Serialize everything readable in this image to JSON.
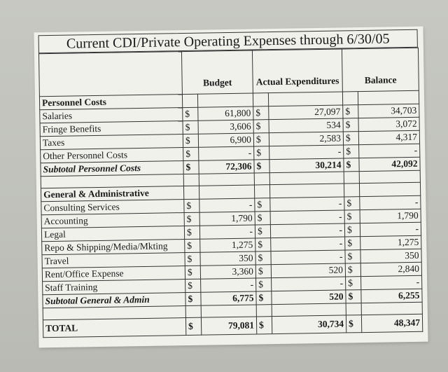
{
  "title": "Current CDI/Private Operating Expenses through 6/30/05",
  "headers": {
    "budget": "Budget",
    "actual": "Actual Expenditures",
    "balance": "Balance"
  },
  "currency": "$",
  "sections": [
    {
      "name": "Personnel Costs",
      "rows": [
        {
          "label": "Salaries",
          "budget": "61,800",
          "actual": "27,097",
          "balance": "34,703"
        },
        {
          "label": "Fringe Benefits",
          "budget": "3,606",
          "actual": "534",
          "balance": "3,072"
        },
        {
          "label": "Taxes",
          "budget": "6,900",
          "actual": "2,583",
          "balance": "4,317"
        },
        {
          "label": "Other Personnel Costs",
          "budget": "-",
          "actual": "-",
          "balance": "-"
        }
      ],
      "subtotal": {
        "label": "Subtotal Personnel Costs",
        "budget": "72,306",
        "actual": "30,214",
        "balance": "42,092"
      }
    },
    {
      "name": "General & Administrative",
      "rows": [
        {
          "label": "Consulting Services",
          "budget": "-",
          "actual": "-",
          "balance": "-"
        },
        {
          "label": "Accounting",
          "budget": "1,790",
          "actual": "-",
          "balance": "1,790"
        },
        {
          "label": "Legal",
          "budget": "-",
          "actual": "-",
          "balance": "-"
        },
        {
          "label": "Repo & Shipping/Media/Mkting",
          "budget": "1,275",
          "actual": "-",
          "balance": "1,275"
        },
        {
          "label": "Travel",
          "budget": "350",
          "actual": "-",
          "balance": "350"
        },
        {
          "label": "Rent/Office Expense",
          "budget": "3,360",
          "actual": "520",
          "balance": "2,840"
        },
        {
          "label": "Staff Training",
          "budget": "-",
          "actual": "-",
          "balance": "-"
        }
      ],
      "subtotal": {
        "label": "Subtotal General & Admin",
        "budget": "6,775",
        "actual": "520",
        "balance": "6,255"
      }
    }
  ],
  "total": {
    "label": "TOTAL",
    "budget": "79,081",
    "actual": "30,734",
    "balance": "48,347"
  }
}
